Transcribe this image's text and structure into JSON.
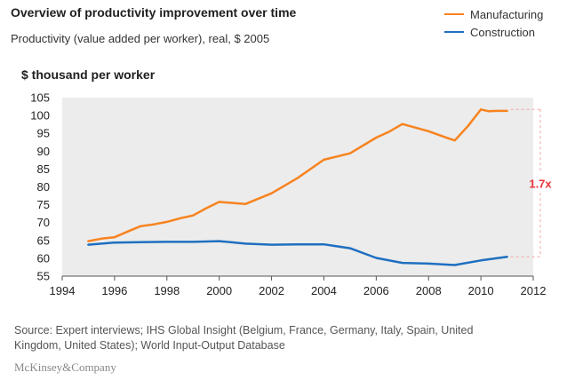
{
  "title": "Overview of productivity improvement over time",
  "subtitle": "Productivity (value added per worker), real, $ 2005",
  "unit_label": "$ thousand per worker",
  "source": "Source: Expert interviews; IHS Global Insight (Belgium, France, Germany, Italy, Spain, United Kingdom, United States); World Input-Output Database",
  "brand": "McKinsey&Company",
  "colors": {
    "manufacturing": "#f7831f",
    "construction": "#1f6fc0",
    "plot_bg": "#ececec",
    "annotation": "#e8333a"
  },
  "chart_data": {
    "type": "line",
    "xlim": [
      1994,
      2012
    ],
    "ylim": [
      55,
      105
    ],
    "x_ticks": [
      1994,
      1996,
      1998,
      2000,
      2002,
      2004,
      2006,
      2008,
      2010,
      2012
    ],
    "y_ticks": [
      55,
      60,
      65,
      70,
      75,
      80,
      85,
      90,
      95,
      100,
      105
    ],
    "grid": false,
    "legend_position": "top-right",
    "series": [
      {
        "name": "Manufacturing",
        "x": [
          1995,
          1995.5,
          1996,
          1996.5,
          1997,
          1997.5,
          1998,
          1998.5,
          1999,
          1999.5,
          2000,
          2001,
          2002,
          2003,
          2004,
          2005,
          2006,
          2006.5,
          2007,
          2008,
          2008.6,
          2009,
          2009.5,
          2010,
          2010.3,
          2010.6,
          2011
        ],
        "y": [
          64.8,
          65.5,
          65.9,
          67.5,
          69.0,
          69.5,
          70.2,
          71.2,
          72.0,
          74.0,
          75.8,
          75.2,
          78.2,
          82.5,
          87.6,
          89.4,
          93.8,
          95.5,
          97.6,
          95.6,
          94.0,
          93.0,
          97.0,
          101.7,
          101.2,
          101.3,
          101.3
        ]
      },
      {
        "name": "Construction",
        "x": [
          1995,
          1996,
          1997,
          1998,
          1999,
          2000,
          2001,
          2002,
          2003,
          2004,
          2005,
          2006,
          2007,
          2008,
          2009,
          2010,
          2011
        ],
        "y": [
          63.8,
          64.4,
          64.5,
          64.6,
          64.6,
          64.8,
          64.1,
          63.8,
          63.9,
          63.9,
          62.8,
          60.1,
          58.7,
          58.5,
          58.1,
          59.4,
          60.4
        ]
      }
    ],
    "annotation": {
      "label": "1.7x",
      "from_value": 60.4,
      "to_value": 101.7
    }
  }
}
